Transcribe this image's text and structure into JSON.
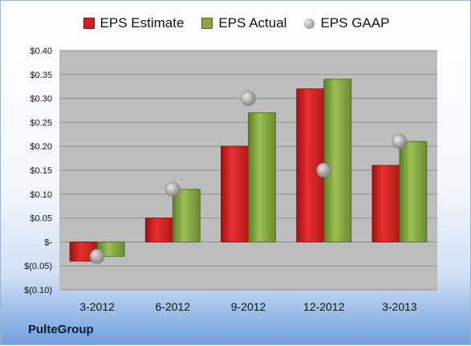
{
  "chart_data": {
    "type": "bar",
    "categories": [
      "3-2012",
      "6-2012",
      "9-2012",
      "12-2012",
      "3-2013"
    ],
    "series": [
      {
        "name": "EPS Estimate",
        "type": "bar",
        "values": [
          -0.04,
          0.05,
          0.2,
          0.32,
          0.16
        ],
        "color": "#d42020"
      },
      {
        "name": "EPS Actual",
        "type": "bar",
        "values": [
          -0.03,
          0.11,
          0.27,
          0.34,
          0.21
        ],
        "color": "#86a844"
      },
      {
        "name": "EPS GAAP",
        "type": "scatter",
        "values": [
          -0.03,
          0.11,
          0.3,
          0.15,
          0.21
        ],
        "color": "#a0a0a0"
      }
    ],
    "ylim": [
      -0.1,
      0.4
    ],
    "ytick_values": [
      0.4,
      0.35,
      0.3,
      0.25,
      0.2,
      0.15,
      0.1,
      0.05,
      0,
      -0.05,
      -0.1
    ],
    "ytick_labels": [
      "$0.40",
      "$0.35",
      "$0.30",
      "$0.25",
      "$0.20",
      "$0.15",
      "$0.10",
      "$0.05",
      "$-",
      "$(0.05)",
      "$(0.10)"
    ],
    "grid": true,
    "legend_position": "top"
  },
  "footer": {
    "company": "PulteGroup"
  }
}
